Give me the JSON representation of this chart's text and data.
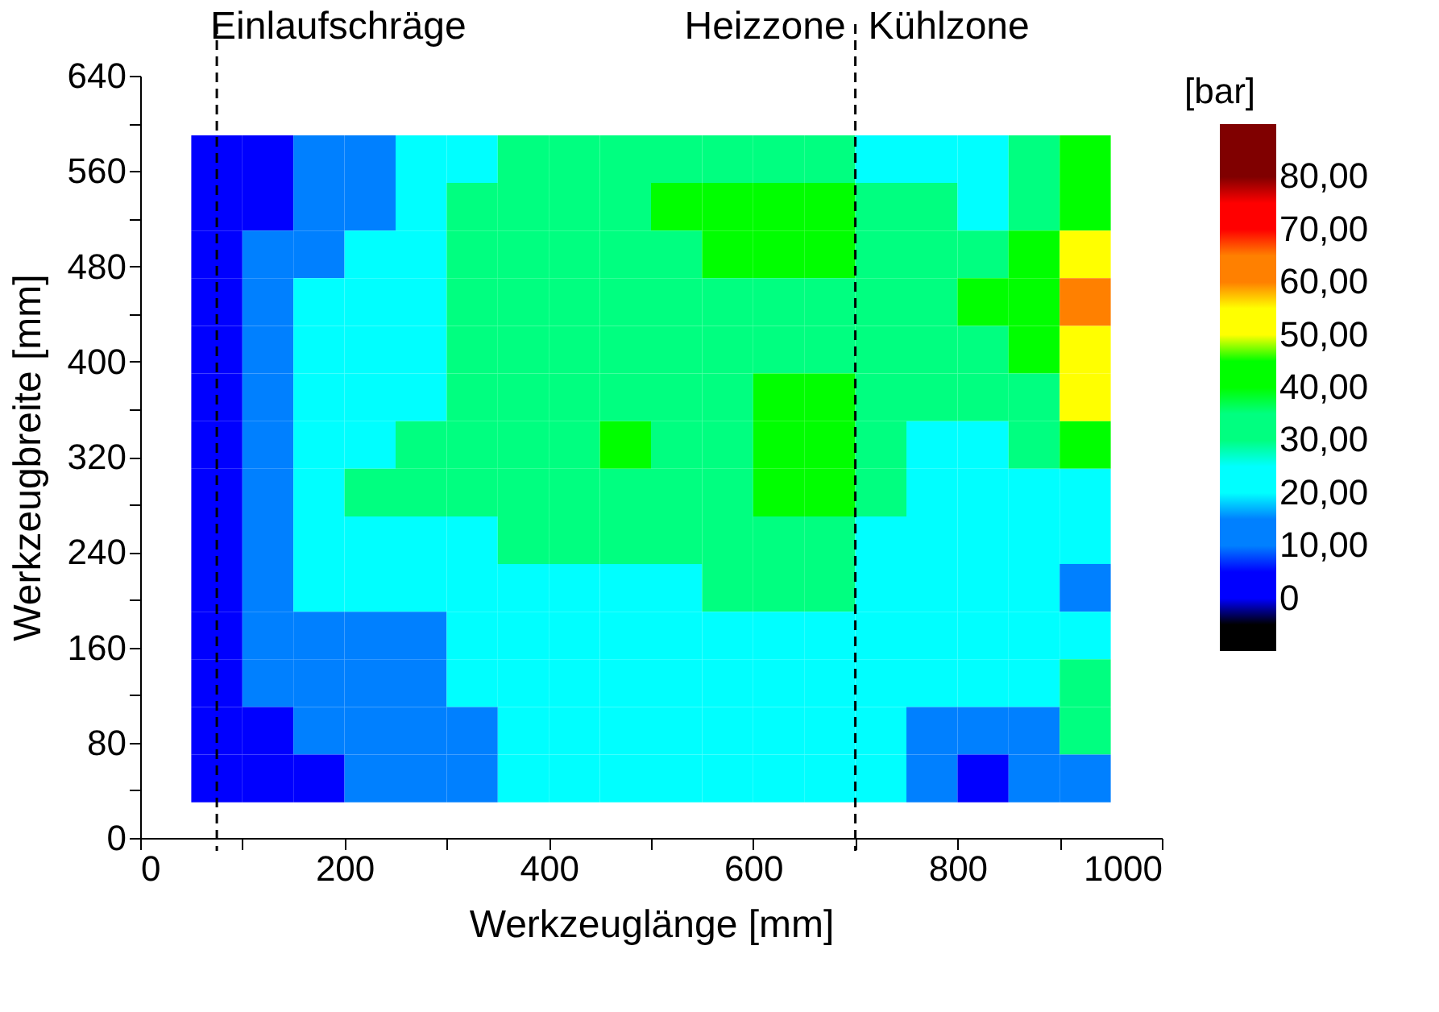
{
  "chart_data": {
    "type": "heatmap",
    "xlabel": "Werkzeuglänge [mm]",
    "ylabel": "Werkzeugbreite [mm]",
    "legend_title": "[bar]",
    "x": [
      75,
      125,
      175,
      225,
      275,
      325,
      375,
      425,
      475,
      525,
      575,
      625,
      675,
      725,
      775,
      825,
      875,
      925
    ],
    "y": [
      570,
      530,
      490,
      450,
      410,
      370,
      330,
      290,
      250,
      210,
      170,
      130,
      90,
      50
    ],
    "cells": [
      [
        5,
        5,
        15,
        15,
        25,
        25,
        35,
        35,
        35,
        35,
        35,
        35,
        35,
        25,
        25,
        25,
        35,
        45
      ],
      [
        5,
        5,
        15,
        15,
        25,
        35,
        35,
        35,
        35,
        45,
        45,
        45,
        45,
        35,
        35,
        25,
        35,
        45
      ],
      [
        5,
        15,
        15,
        25,
        25,
        35,
        35,
        35,
        35,
        35,
        45,
        45,
        45,
        35,
        35,
        35,
        45,
        55
      ],
      [
        5,
        15,
        25,
        25,
        25,
        35,
        35,
        35,
        35,
        35,
        35,
        35,
        35,
        35,
        35,
        45,
        45,
        65
      ],
      [
        5,
        15,
        25,
        25,
        25,
        35,
        35,
        35,
        35,
        35,
        35,
        35,
        35,
        35,
        35,
        35,
        45,
        55
      ],
      [
        5,
        15,
        25,
        25,
        25,
        35,
        35,
        35,
        35,
        35,
        35,
        45,
        45,
        35,
        35,
        35,
        35,
        55
      ],
      [
        5,
        15,
        25,
        25,
        35,
        35,
        35,
        35,
        45,
        35,
        35,
        45,
        45,
        35,
        25,
        25,
        35,
        45
      ],
      [
        5,
        15,
        25,
        35,
        35,
        35,
        35,
        35,
        35,
        35,
        35,
        45,
        45,
        35,
        25,
        25,
        25,
        25
      ],
      [
        5,
        15,
        25,
        25,
        25,
        25,
        35,
        35,
        35,
        35,
        35,
        35,
        35,
        25,
        25,
        25,
        25,
        25
      ],
      [
        5,
        15,
        25,
        25,
        25,
        25,
        25,
        25,
        25,
        25,
        35,
        35,
        35,
        25,
        25,
        25,
        25,
        15
      ],
      [
        5,
        15,
        15,
        15,
        15,
        25,
        25,
        25,
        25,
        25,
        25,
        25,
        25,
        25,
        25,
        25,
        25,
        25
      ],
      [
        5,
        15,
        15,
        15,
        15,
        25,
        25,
        25,
        25,
        25,
        25,
        25,
        25,
        25,
        25,
        25,
        25,
        35
      ],
      [
        5,
        5,
        15,
        15,
        15,
        15,
        25,
        25,
        25,
        25,
        25,
        25,
        25,
        25,
        15,
        15,
        15,
        35
      ],
      [
        5,
        5,
        5,
        15,
        15,
        15,
        25,
        25,
        25,
        25,
        25,
        25,
        25,
        25,
        15,
        5,
        15,
        15
      ]
    ],
    "colors": [
      "#000000",
      "#0000ff",
      "#0080ff",
      "#00ffff",
      "#00ff80",
      "#00ff00",
      "#ffff00",
      "#ff8000",
      "#ff0000",
      "#800000"
    ],
    "clim": [
      -10,
      90
    ],
    "cticks": [
      {
        "value": 0,
        "label": "0"
      },
      {
        "value": 10,
        "label": "10,00"
      },
      {
        "value": 20,
        "label": "20,00"
      },
      {
        "value": 30,
        "label": "30,00"
      },
      {
        "value": 40,
        "label": "40,00"
      },
      {
        "value": 50,
        "label": "50,00"
      },
      {
        "value": 60,
        "label": "60,00"
      },
      {
        "value": 70,
        "label": "70,00"
      },
      {
        "value": 80,
        "label": "80,00"
      }
    ],
    "xlim": [
      0,
      1000
    ],
    "xticks": [
      0,
      {
        "value": 100,
        "label": null
      },
      200,
      {
        "value": 300,
        "label": null
      },
      400,
      {
        "value": 500,
        "label": null
      },
      600,
      {
        "value": 700,
        "label": null
      },
      800,
      {
        "value": 900,
        "label": null
      },
      1000
    ],
    "ylim": [
      0,
      640
    ],
    "yticks": [
      0,
      {
        "value": 40,
        "label": null
      },
      80,
      {
        "value": 120,
        "label": null
      },
      160,
      {
        "value": 200,
        "label": null
      },
      240,
      {
        "value": 280,
        "label": null
      },
      320,
      {
        "value": 360,
        "label": null
      },
      400,
      {
        "value": 440,
        "label": null
      },
      480,
      {
        "value": 520,
        "label": null
      },
      560,
      {
        "value": 600,
        "label": null
      },
      640
    ],
    "ref_lines": [
      {
        "axis": "x",
        "value": 75,
        "line_style": "dashed",
        "color": "#000000"
      },
      {
        "axis": "x",
        "value": 700,
        "line_style": "dashed",
        "color": "#000000"
      }
    ],
    "annotations": [
      "Einlaufschräge",
      "Heizzone",
      "Kühlzone"
    ],
    "grid": false
  }
}
